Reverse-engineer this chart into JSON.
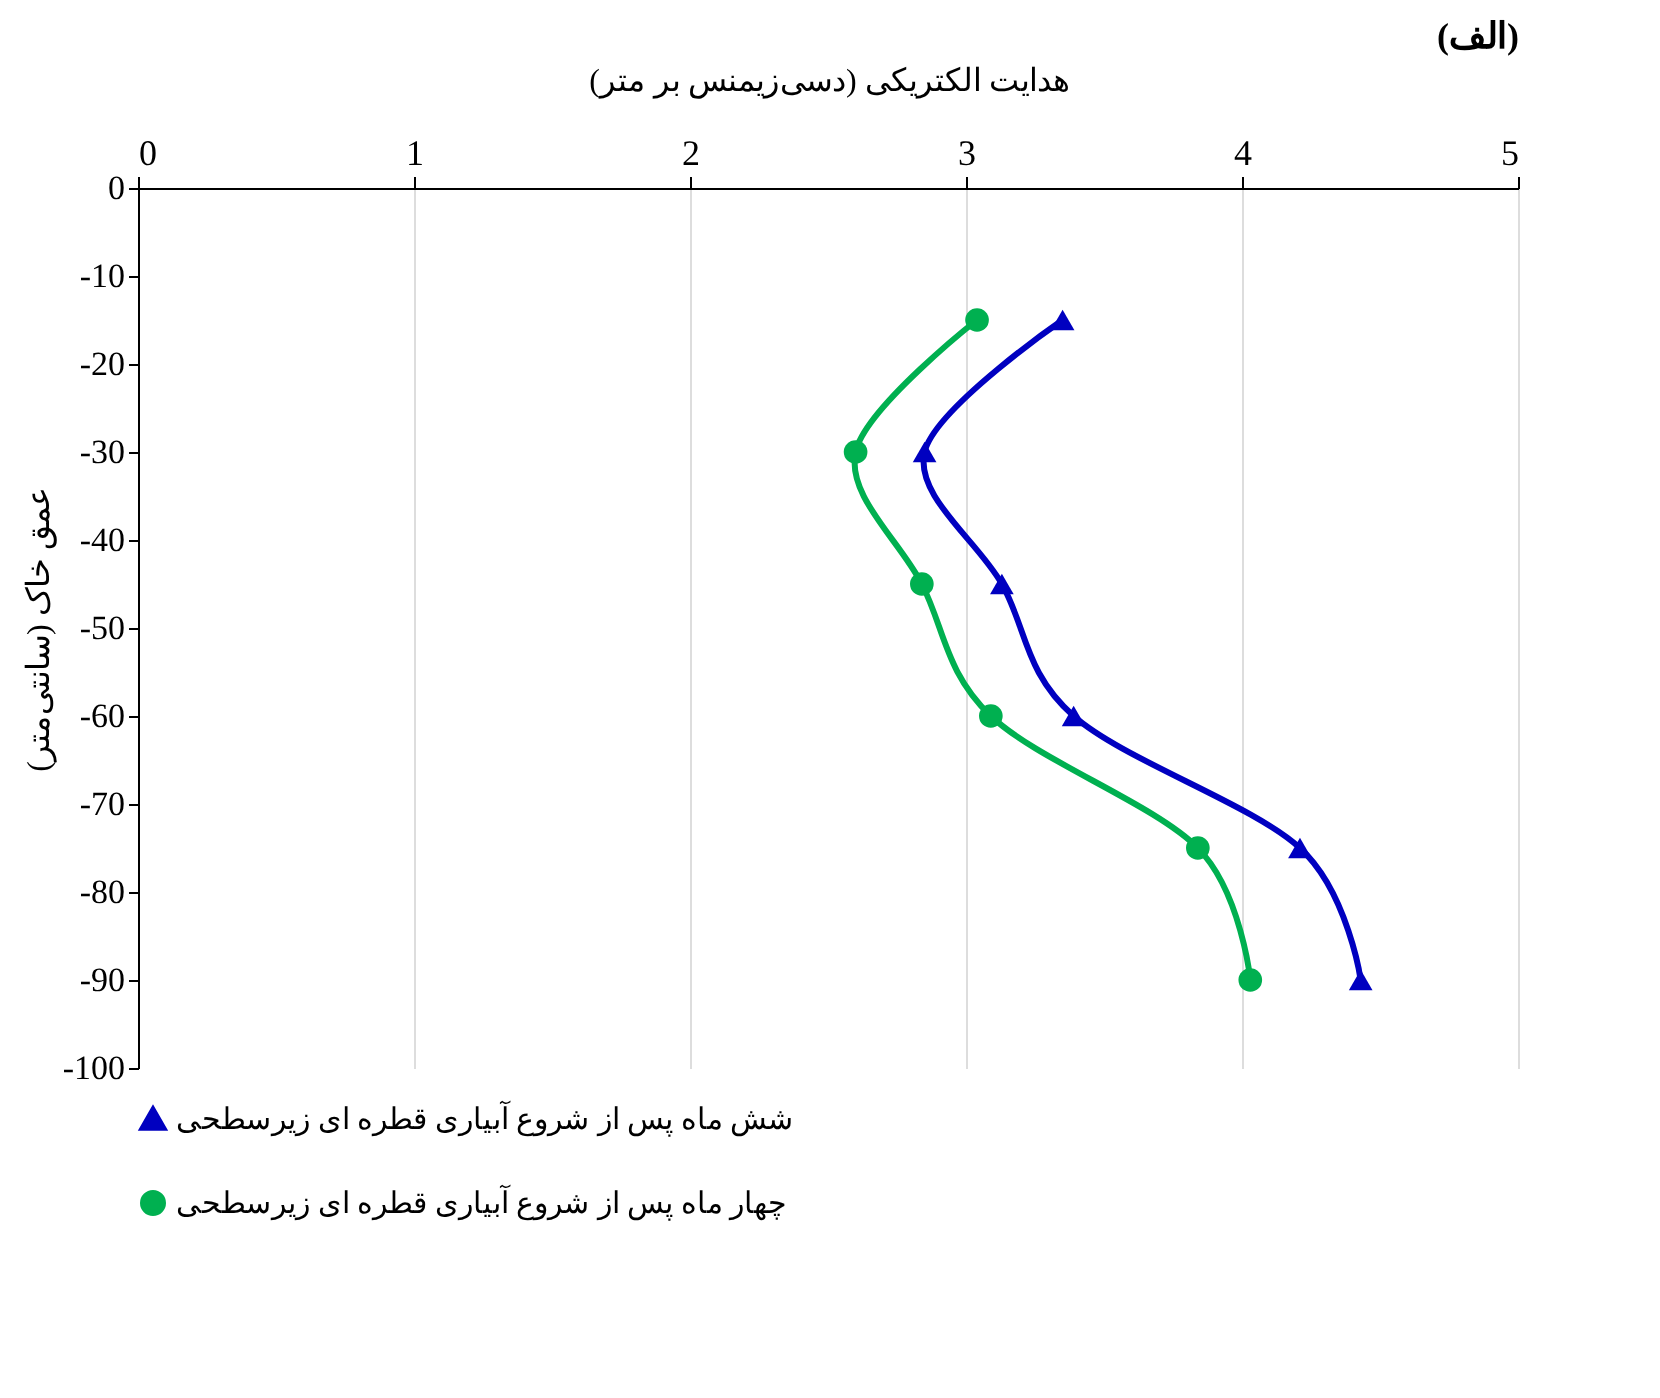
{
  "chart_data": {
    "type": "line",
    "title": "(الف)",
    "xlabel": "هدایت الکتریکی (دسی‌زیمنس بر متر)",
    "ylabel": "عمق خاک (سانتی‌متر)",
    "xlim": [
      0,
      5
    ],
    "xticks": [
      0,
      1,
      2,
      3,
      4,
      5
    ],
    "ylim": [
      -100,
      0
    ],
    "yticks": [
      0,
      -10,
      -20,
      -30,
      -40,
      -50,
      -60,
      -70,
      -80,
      -90,
      -100
    ],
    "grid": "x",
    "legend": "bottom",
    "series": [
      {
        "name": "شش ماه پس از شروع آبیاری قطره ای زیرسطحی",
        "color": "#0000c0",
        "marker": "triangle",
        "x": [
          3.35,
          2.85,
          3.13,
          3.39,
          4.21,
          4.43
        ],
        "values": [
          -15,
          -30,
          -45,
          -60,
          -75,
          -90
        ]
      },
      {
        "name": "چهار ماه پس از شروع آبیاری قطره ای زیرسطحی",
        "color": "#00b050",
        "marker": "circle",
        "x": [
          3.04,
          2.6,
          2.84,
          3.09,
          3.84,
          4.03
        ],
        "values": [
          -15,
          -30,
          -45,
          -60,
          -75,
          -90
        ]
      }
    ]
  }
}
